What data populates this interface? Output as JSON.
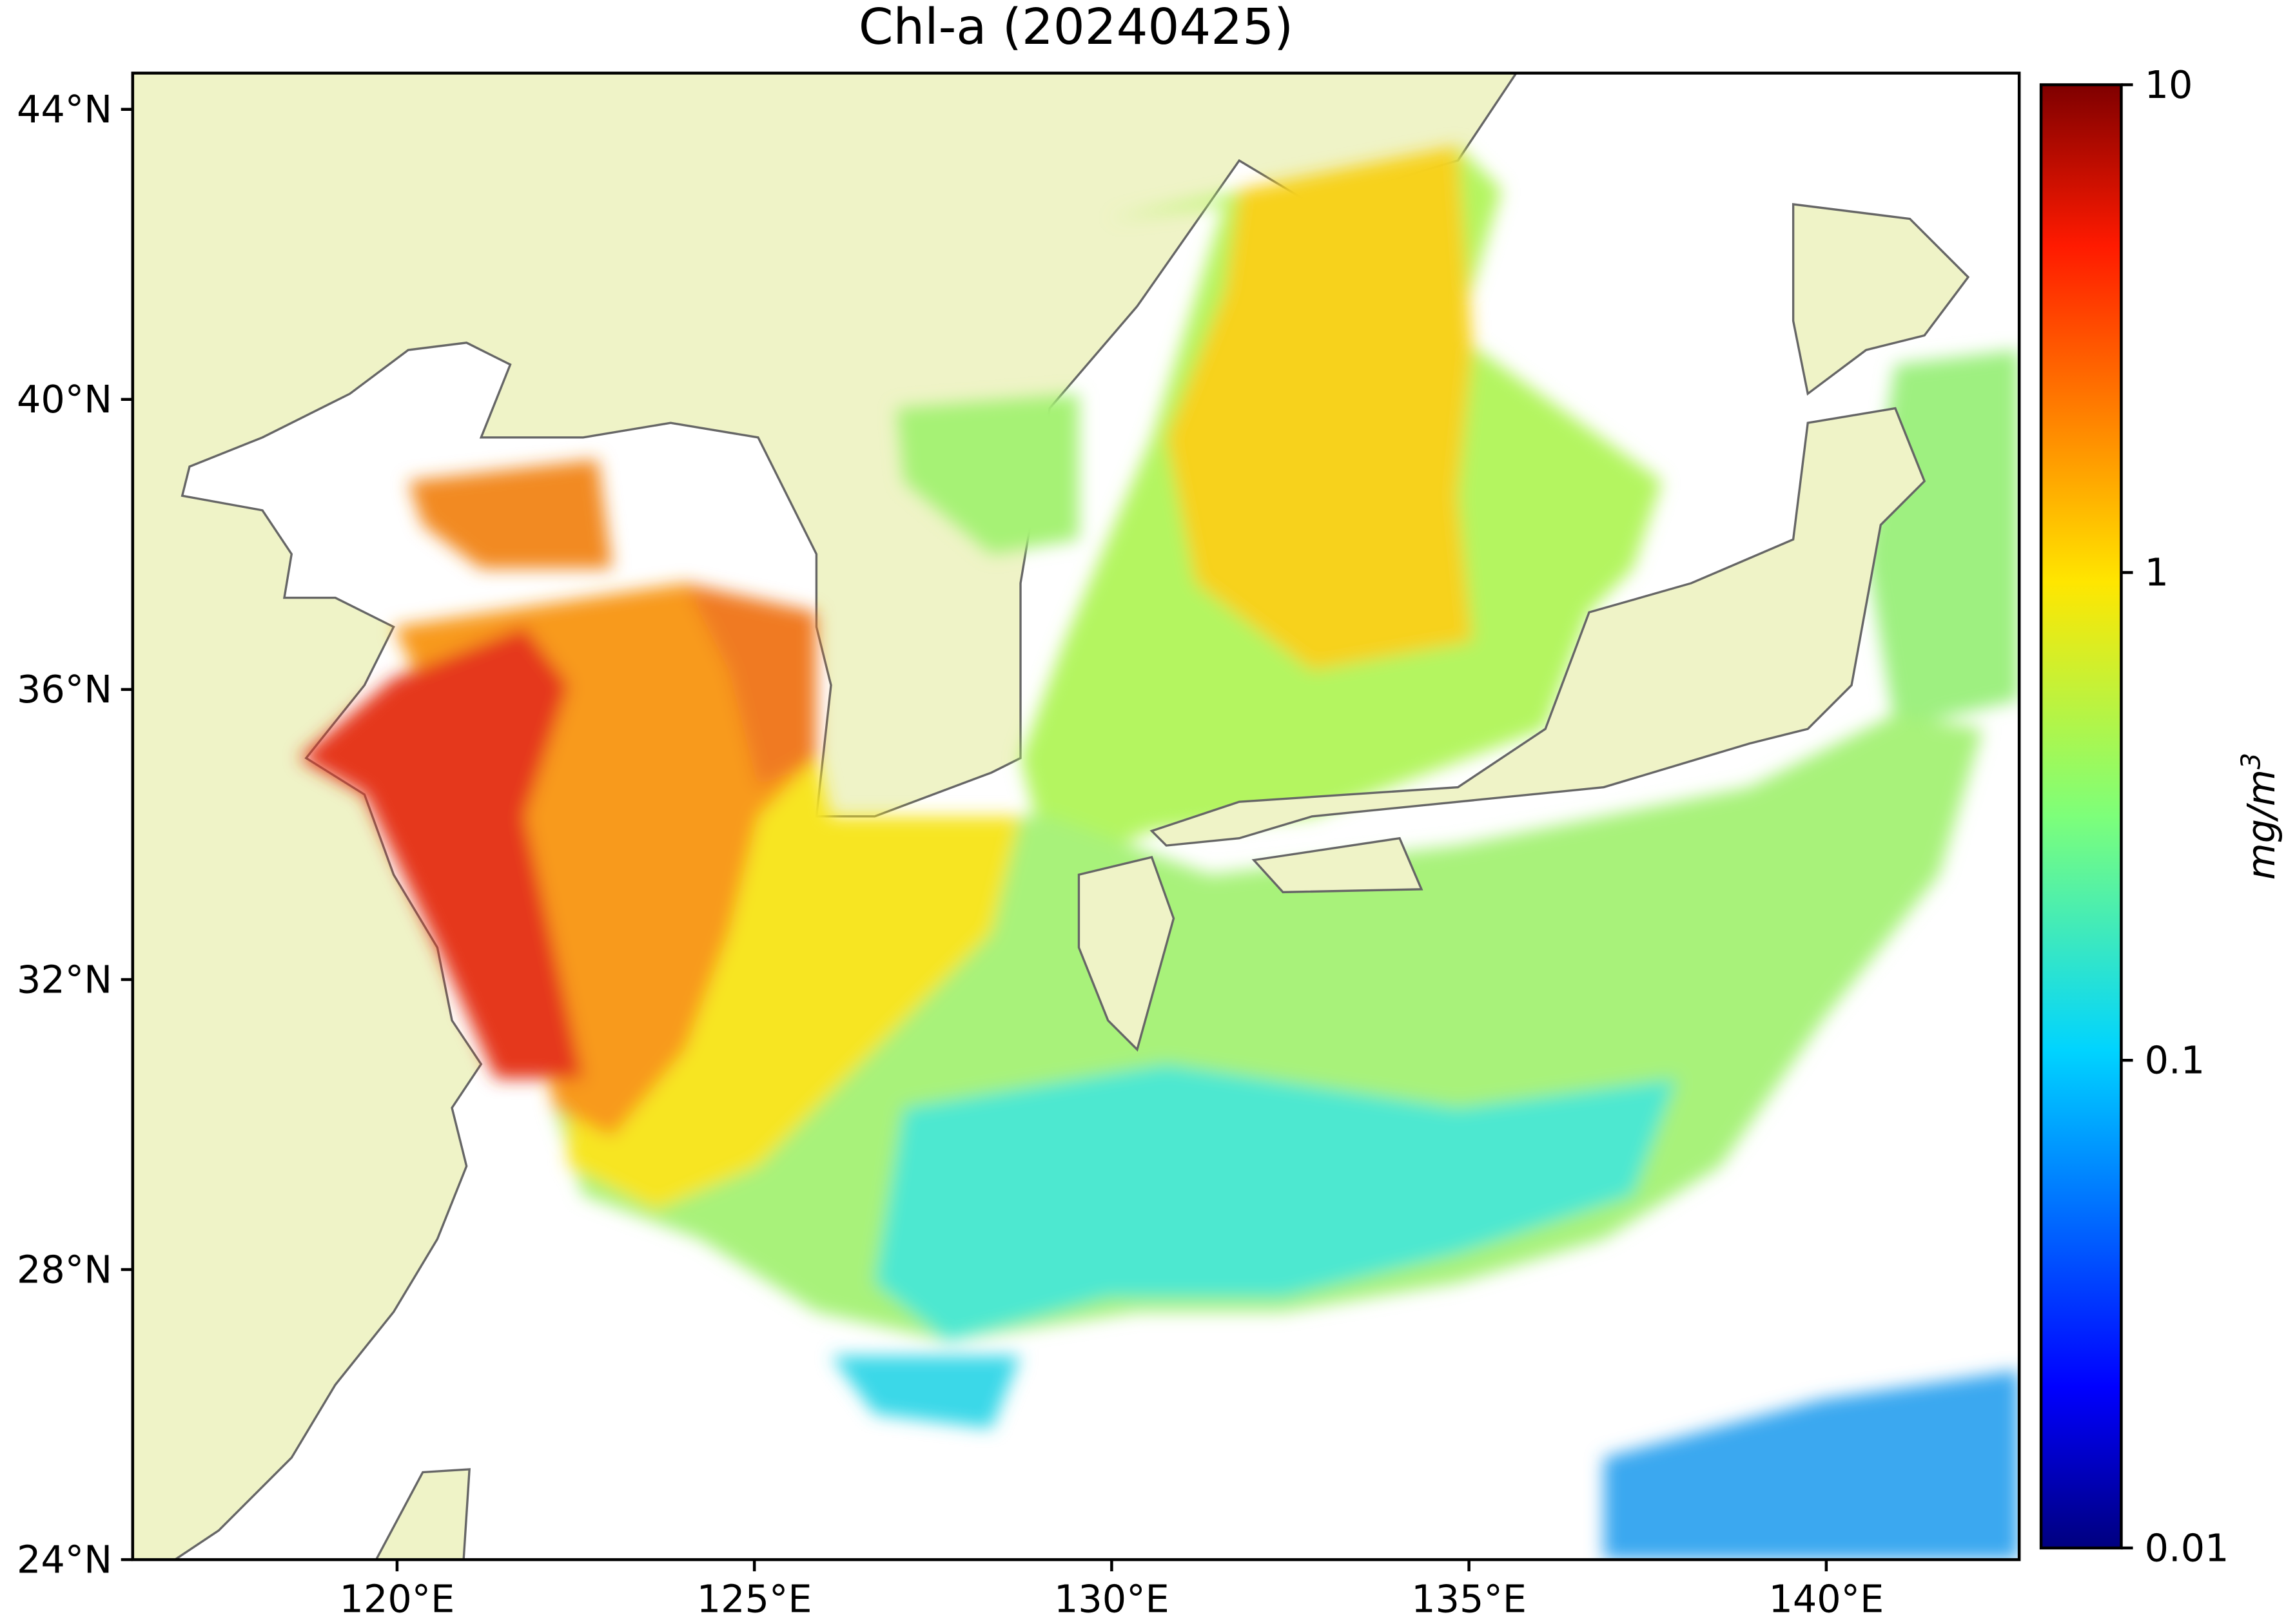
{
  "title": "Chl-a (20240425)",
  "map": {
    "lonlim": [
      116.3,
      142.7
    ],
    "latlim": [
      24,
      44.5
    ],
    "lon_ticks": [
      {
        "value": 120,
        "label": "120°E"
      },
      {
        "value": 125,
        "label": "125°E"
      },
      {
        "value": 130,
        "label": "130°E"
      },
      {
        "value": 135,
        "label": "135°E"
      },
      {
        "value": 140,
        "label": "140°E"
      }
    ],
    "lat_ticks": [
      {
        "value": 24,
        "label": "24°N"
      },
      {
        "value": 28,
        "label": "28°N"
      },
      {
        "value": 32,
        "label": "32°N"
      },
      {
        "value": 36,
        "label": "36°N"
      },
      {
        "value": 40,
        "label": "40°N"
      },
      {
        "value": 44,
        "label": "44°N"
      }
    ]
  },
  "colorbar": {
    "label": "mg/m",
    "label_superscript": "3",
    "scale": "log",
    "lim": [
      0.01,
      10
    ],
    "ticks": [
      0.01,
      0.1,
      1,
      10
    ]
  }
}
